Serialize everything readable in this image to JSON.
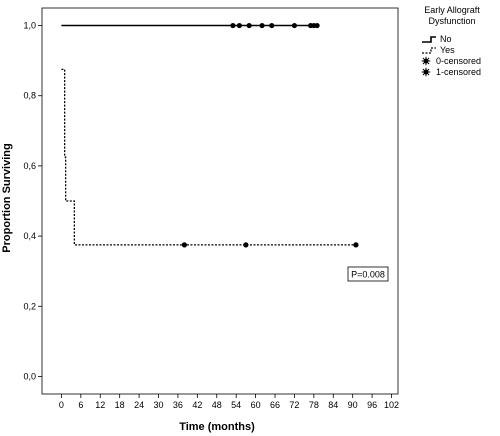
{
  "chart_data": {
    "type": "line",
    "xlabel": "Time (months)",
    "ylabel": "Proportion Surviving",
    "xlim": [
      -6,
      104
    ],
    "ylim": [
      -0.05,
      1.05
    ],
    "x_ticks": [
      0,
      6,
      12,
      18,
      24,
      30,
      36,
      42,
      48,
      54,
      60,
      66,
      72,
      78,
      84,
      90,
      96,
      102
    ],
    "y_ticks": [
      0.0,
      0.2,
      0.4,
      0.6,
      0.8,
      1.0
    ],
    "y_tick_labels": [
      "0,0",
      "0,2",
      "0,4",
      "0,6",
      "0,8",
      "1,0"
    ],
    "grid": false,
    "legend_position": "top-right outside plot",
    "legend": {
      "title": "Early Allograft Dysfunction",
      "entries": [
        {
          "label": "No",
          "style": "solid"
        },
        {
          "label": "Yes",
          "style": "dotted"
        },
        {
          "label": "0-censored",
          "style": "censor-marker"
        },
        {
          "label": "1-censored",
          "style": "censor-marker"
        }
      ]
    },
    "annotation": "P=0.008",
    "series": [
      {
        "name": "No",
        "style": "solid",
        "color": "#000000",
        "steps": [
          [
            0,
            1.0
          ],
          [
            79,
            1.0
          ]
        ],
        "censored": [
          [
            53,
            1.0
          ],
          [
            55,
            1.0
          ],
          [
            58,
            1.0
          ],
          [
            62,
            1.0
          ],
          [
            65,
            1.0
          ],
          [
            72,
            1.0
          ],
          [
            77,
            1.0
          ],
          [
            78,
            1.0
          ],
          [
            79,
            1.0
          ]
        ]
      },
      {
        "name": "Yes",
        "style": "dotted",
        "color": "#000000",
        "steps": [
          [
            0,
            0.875
          ],
          [
            1,
            0.875
          ],
          [
            1,
            0.625
          ],
          [
            1.3,
            0.625
          ],
          [
            1.3,
            0.5
          ],
          [
            4,
            0.5
          ],
          [
            4,
            0.375
          ],
          [
            91,
            0.375
          ]
        ],
        "censored": [
          [
            38,
            0.375
          ],
          [
            57,
            0.375
          ],
          [
            91,
            0.375
          ]
        ]
      }
    ]
  }
}
